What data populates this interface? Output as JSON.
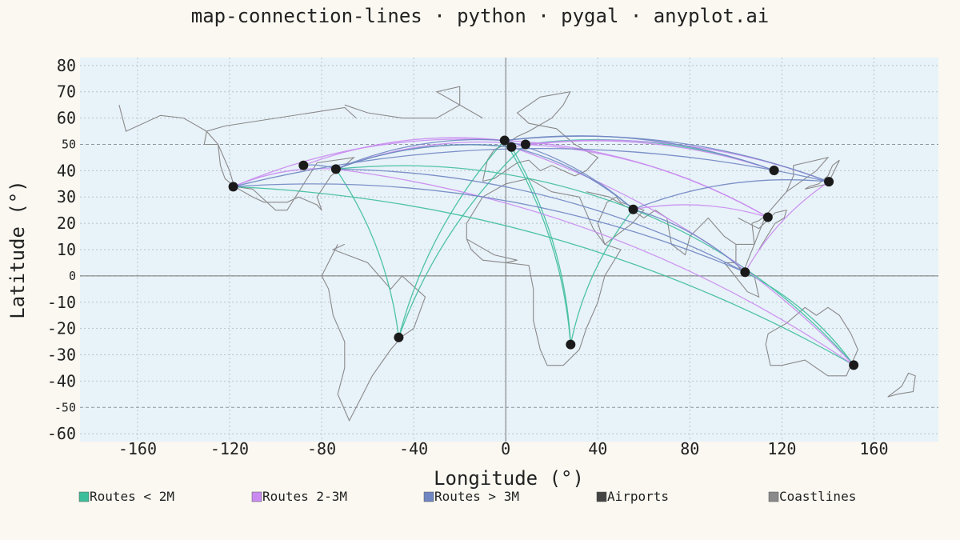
{
  "chart_data": {
    "type": "line",
    "title": "map-connection-lines · python · pygal · anyplot.ai",
    "xlabel": "Longitude (°)",
    "ylabel": "Latitude (°)",
    "xlim": [
      -185,
      188
    ],
    "ylim": [
      -63,
      83
    ],
    "x_ticks": [
      -160,
      -120,
      -80,
      -40,
      0,
      40,
      80,
      120,
      160
    ],
    "y_ticks": [
      80,
      70,
      60,
      50,
      40,
      30,
      20,
      10,
      0,
      -10,
      -20,
      -30,
      -40,
      -50,
      -60
    ],
    "major_y_ticks": [
      50,
      0,
      -50
    ],
    "grid": true,
    "legend_position": "bottom",
    "legend": [
      {
        "label": "Routes < 2M",
        "color": "#3DBE9B"
      },
      {
        "label": "Routes 2-3M",
        "color": "#C98BF0"
      },
      {
        "label": "Routes > 3M",
        "color": "#6F86C2"
      },
      {
        "label": "Airports",
        "color": "#444444"
      },
      {
        "label": "Coastlines",
        "color": "#8A8A8A"
      }
    ],
    "colors": {
      "background": "#FAF8F1",
      "plot_background": "#E8F2F9",
      "routes_low": "#3DBE9B",
      "routes_mid": "#C98BF0",
      "routes_high": "#6F86C2",
      "airports": "#1A1A1A",
      "coastlines": "#8A8A8A"
    },
    "airports": [
      {
        "x": -118.4,
        "y": 33.9
      },
      {
        "x": -87.9,
        "y": 42.0
      },
      {
        "x": -73.8,
        "y": 40.6
      },
      {
        "x": -46.5,
        "y": -23.4
      },
      {
        "x": -0.5,
        "y": 51.5
      },
      {
        "x": 2.5,
        "y": 49.0
      },
      {
        "x": 8.6,
        "y": 50.0
      },
      {
        "x": 28.2,
        "y": -26.1
      },
      {
        "x": 55.4,
        "y": 25.3
      },
      {
        "x": 104.0,
        "y": 1.4
      },
      {
        "x": 113.9,
        "y": 22.3
      },
      {
        "x": 116.6,
        "y": 40.1
      },
      {
        "x": 140.4,
        "y": 35.8
      },
      {
        "x": 151.2,
        "y": -33.9
      }
    ],
    "routes": [
      {
        "category": "low",
        "from": 2,
        "to": 3
      },
      {
        "category": "low",
        "from": 2,
        "to": 5
      },
      {
        "category": "low",
        "from": 0,
        "to": 13
      },
      {
        "category": "low",
        "from": 3,
        "to": 4
      },
      {
        "category": "low",
        "from": 3,
        "to": 6
      },
      {
        "category": "low",
        "from": 4,
        "to": 7
      },
      {
        "category": "low",
        "from": 7,
        "to": 8
      },
      {
        "category": "low",
        "from": 6,
        "to": 11
      },
      {
        "category": "low",
        "from": 2,
        "to": 8
      },
      {
        "category": "low",
        "from": 8,
        "to": 13
      },
      {
        "category": "low",
        "from": 9,
        "to": 13
      },
      {
        "category": "low",
        "from": 5,
        "to": 7
      },
      {
        "category": "mid",
        "from": 1,
        "to": 4
      },
      {
        "category": "mid",
        "from": 2,
        "to": 6
      },
      {
        "category": "mid",
        "from": 5,
        "to": 11
      },
      {
        "category": "mid",
        "from": 6,
        "to": 12
      },
      {
        "category": "mid",
        "from": 8,
        "to": 10
      },
      {
        "category": "mid",
        "from": 9,
        "to": 12
      },
      {
        "category": "mid",
        "from": 0,
        "to": 2
      },
      {
        "category": "mid",
        "from": 5,
        "to": 13
      },
      {
        "category": "mid",
        "from": 4,
        "to": 10
      },
      {
        "category": "mid",
        "from": 2,
        "to": 13
      },
      {
        "category": "mid",
        "from": 0,
        "to": 4
      },
      {
        "category": "mid",
        "from": 6,
        "to": 10
      },
      {
        "category": "high",
        "from": 2,
        "to": 4
      },
      {
        "category": "high",
        "from": 2,
        "to": 5
      },
      {
        "category": "high",
        "from": 4,
        "to": 11
      },
      {
        "category": "high",
        "from": 4,
        "to": 12
      },
      {
        "category": "high",
        "from": 0,
        "to": 12
      },
      {
        "category": "high",
        "from": 4,
        "to": 8
      },
      {
        "category": "high",
        "from": 8,
        "to": 9
      },
      {
        "category": "high",
        "from": 0,
        "to": 9
      },
      {
        "category": "high",
        "from": 5,
        "to": 8
      },
      {
        "category": "high",
        "from": 2,
        "to": 9
      },
      {
        "category": "high",
        "from": 1,
        "to": 2
      },
      {
        "category": "high",
        "from": 8,
        "to": 12
      }
    ],
    "coastlines": [
      [
        [
          -168,
          65
        ],
        [
          -165,
          55
        ],
        [
          -150,
          61
        ],
        [
          -140,
          60
        ],
        [
          -130,
          55
        ],
        [
          -125,
          50
        ],
        [
          -124,
          42
        ],
        [
          -122,
          37
        ],
        [
          -118,
          34
        ],
        [
          -110,
          30
        ],
        [
          -105,
          28
        ],
        [
          -95,
          28
        ],
        [
          -90,
          30
        ],
        [
          -82,
          27
        ],
        [
          -80,
          25
        ],
        [
          -82,
          30
        ],
        [
          -76,
          38
        ],
        [
          -70,
          42
        ],
        [
          -66,
          45
        ],
        [
          -82,
          43
        ],
        [
          -95,
          25
        ],
        [
          -100,
          25
        ],
        [
          -110,
          33
        ],
        [
          -118,
          34
        ],
        [
          -120,
          40
        ],
        [
          -125,
          50
        ],
        [
          -131,
          50
        ],
        [
          -130,
          55
        ],
        [
          -122,
          57
        ],
        [
          -70,
          64
        ],
        [
          -65,
          60
        ]
      ],
      [
        [
          -73,
          12
        ],
        [
          -80,
          0
        ],
        [
          -77,
          -5
        ],
        [
          -75,
          -15
        ],
        [
          -70,
          -25
        ],
        [
          -70,
          -35
        ],
        [
          -73,
          -45
        ],
        [
          -68,
          -55
        ],
        [
          -65,
          -50
        ],
        [
          -58,
          -38
        ],
        [
          -50,
          -28
        ],
        [
          -45,
          -23
        ],
        [
          -40,
          -20
        ],
        [
          -35,
          -8
        ],
        [
          -45,
          0
        ],
        [
          -50,
          -5
        ],
        [
          -60,
          5
        ],
        [
          -75,
          10
        ],
        [
          -70,
          12
        ]
      ],
      [
        [
          -10,
          36
        ],
        [
          -8,
          44
        ],
        [
          -5,
          48
        ],
        [
          0,
          50
        ],
        [
          5,
          53
        ],
        [
          10,
          55
        ],
        [
          20,
          60
        ],
        [
          25,
          65
        ],
        [
          28,
          70
        ],
        [
          15,
          68
        ],
        [
          5,
          62
        ],
        [
          10,
          58
        ],
        [
          22,
          56
        ],
        [
          30,
          50
        ],
        [
          40,
          45
        ],
        [
          35,
          40
        ],
        [
          30,
          38
        ],
        [
          25,
          40
        ],
        [
          20,
          42
        ],
        [
          15,
          40
        ],
        [
          10,
          44
        ],
        [
          5,
          43
        ],
        [
          0,
          40
        ],
        [
          -5,
          37
        ],
        [
          -10,
          36
        ]
      ],
      [
        [
          -17,
          14
        ],
        [
          -15,
          10
        ],
        [
          -10,
          6
        ],
        [
          0,
          5
        ],
        [
          10,
          4
        ],
        [
          12,
          -5
        ],
        [
          12,
          -17
        ],
        [
          15,
          -28
        ],
        [
          18,
          -34
        ],
        [
          25,
          -34
        ],
        [
          32,
          -28
        ],
        [
          35,
          -20
        ],
        [
          40,
          -10
        ],
        [
          43,
          0
        ],
        [
          50,
          10
        ],
        [
          43,
          12
        ],
        [
          38,
          18
        ],
        [
          32,
          30
        ],
        [
          20,
          32
        ],
        [
          10,
          37
        ],
        [
          0,
          35
        ],
        [
          -10,
          30
        ],
        [
          -17,
          20
        ],
        [
          -17,
          14
        ]
      ],
      [
        [
          -17,
          14
        ],
        [
          -5,
          8
        ],
        [
          5,
          6
        ],
        [
          0,
          5
        ]
      ],
      [
        [
          35,
          32
        ],
        [
          45,
          30
        ],
        [
          55,
          25
        ],
        [
          60,
          22
        ],
        [
          65,
          25
        ],
        [
          70,
          22
        ],
        [
          72,
          12
        ],
        [
          78,
          8
        ],
        [
          80,
          15
        ],
        [
          88,
          22
        ],
        [
          95,
          15
        ],
        [
          100,
          12
        ],
        [
          100,
          5
        ],
        [
          103,
          1
        ],
        [
          108,
          12
        ],
        [
          107,
          20
        ],
        [
          110,
          21
        ],
        [
          113,
          23
        ],
        [
          120,
          30
        ],
        [
          122,
          32
        ],
        [
          125,
          38
        ],
        [
          125,
          42
        ],
        [
          130,
          43
        ],
        [
          140,
          45
        ],
        [
          135,
          40
        ],
        [
          122,
          32
        ],
        [
          120,
          30
        ],
        [
          113,
          23
        ],
        [
          108,
          12
        ],
        [
          100,
          12
        ]
      ],
      [
        [
          -10,
          60
        ],
        [
          -30,
          70
        ],
        [
          -20,
          72
        ],
        [
          -20,
          65
        ],
        [
          -30,
          60
        ],
        [
          -45,
          60
        ],
        [
          -60,
          62
        ],
        [
          -70,
          65
        ]
      ],
      [
        [
          114,
          -22
        ],
        [
          113,
          -26
        ],
        [
          115,
          -34
        ],
        [
          120,
          -34
        ],
        [
          130,
          -32
        ],
        [
          135,
          -35
        ],
        [
          140,
          -38
        ],
        [
          148,
          -38
        ],
        [
          153,
          -28
        ],
        [
          150,
          -22
        ],
        [
          145,
          -15
        ],
        [
          140,
          -12
        ],
        [
          135,
          -15
        ],
        [
          130,
          -12
        ],
        [
          122,
          -18
        ],
        [
          114,
          -22
        ]
      ],
      [
        [
          130,
          33
        ],
        [
          132,
          34
        ],
        [
          136,
          35
        ],
        [
          140,
          38
        ],
        [
          142,
          42
        ],
        [
          145,
          44
        ],
        [
          140,
          35
        ],
        [
          130,
          33
        ]
      ],
      [
        [
          166,
          -46
        ],
        [
          172,
          -42
        ],
        [
          175,
          -37
        ],
        [
          178,
          -38
        ],
        [
          177,
          -44
        ],
        [
          170,
          -45
        ],
        [
          166,
          -46
        ]
      ],
      [
        [
          95,
          5
        ],
        [
          105,
          -6
        ],
        [
          110,
          -8
        ],
        [
          108,
          0
        ],
        [
          100,
          5
        ],
        [
          95,
          5
        ]
      ],
      [
        [
          43,
          12
        ],
        [
          55,
          20
        ],
        [
          60,
          25
        ],
        [
          50,
          28
        ],
        [
          48,
          30
        ],
        [
          44,
          28
        ],
        [
          40,
          20
        ],
        [
          43,
          12
        ]
      ],
      [
        [
          101,
          22
        ],
        [
          110,
          18
        ],
        [
          117,
          24
        ],
        [
          122,
          25
        ],
        [
          121,
          22
        ],
        [
          117,
          20
        ],
        [
          110,
          10
        ]
      ]
    ]
  }
}
